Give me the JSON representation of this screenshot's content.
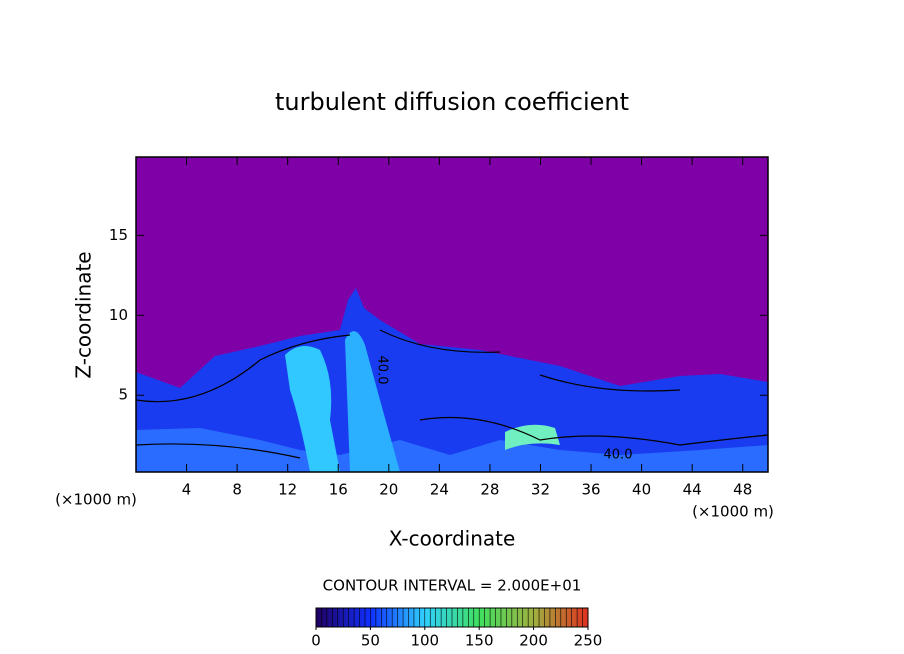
{
  "chart_data": {
    "type": "contour",
    "title": "turbulent diffusion coefficient",
    "x_label": "X-coordinate",
    "y_label": "Z-coordinate",
    "x_unit_label": "(×1000 m)",
    "y_unit_label": "(×1000 m)",
    "xlim": [
      0,
      50
    ],
    "xticks": [
      4,
      8,
      12,
      16,
      20,
      24,
      28,
      32,
      36,
      40,
      44,
      48
    ],
    "ylim": [
      0.2,
      19.9
    ],
    "yticks": [
      5,
      10,
      15
    ],
    "contour_labels": [
      "40.0",
      "40.0"
    ],
    "contour_interval_label": "CONTOUR INTERVAL = 2.000E+01",
    "colorbar": {
      "lim": [
        0,
        250
      ],
      "ticks": [
        0,
        50,
        100,
        150,
        200,
        250
      ]
    }
  }
}
